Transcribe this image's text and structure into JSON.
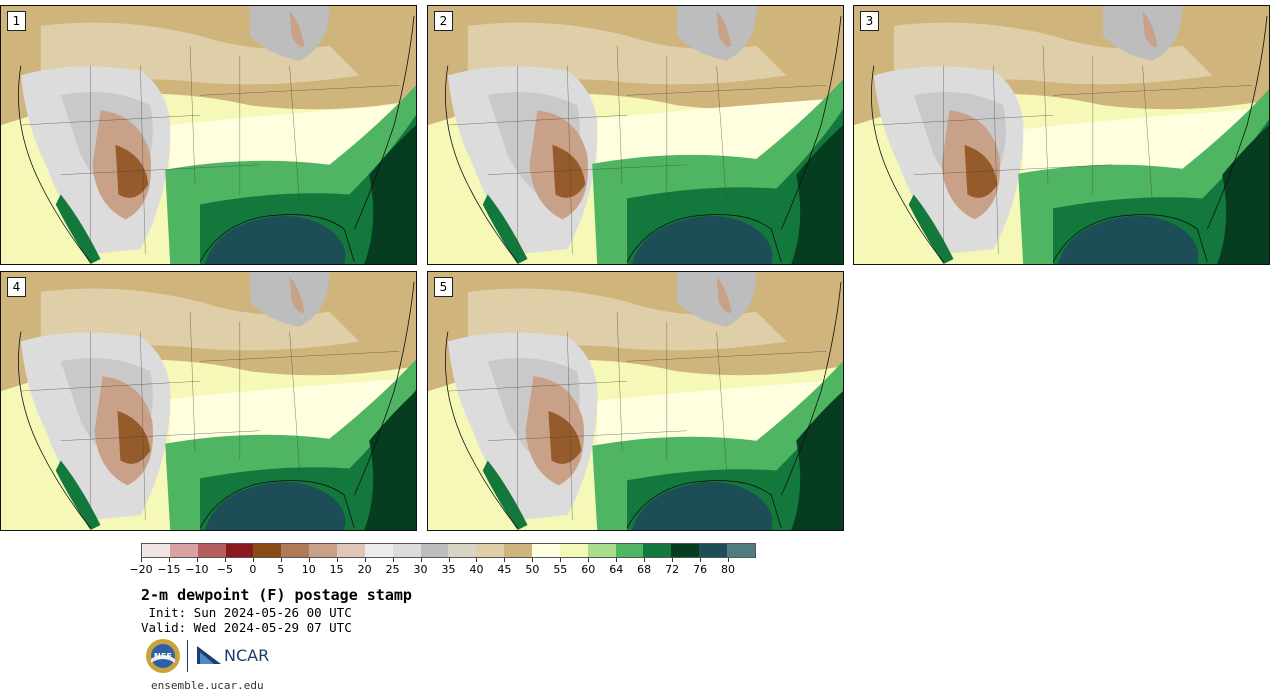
{
  "panels": [
    {
      "label": "1"
    },
    {
      "label": "2"
    },
    {
      "label": "3"
    },
    {
      "label": "4"
    },
    {
      "label": "5"
    }
  ],
  "colorbar": {
    "colors": [
      "#f2e4e4",
      "#d9a2a2",
      "#b65e5e",
      "#8b1a1f",
      "#8a4a14",
      "#b07a58",
      "#c9a188",
      "#dfc6b6",
      "#ececec",
      "#dcdcdc",
      "#bdbdbd",
      "#d8d5c6",
      "#dfcfa8",
      "#cfb47c",
      "#ffffe0",
      "#f6f8b8",
      "#a9dd8c",
      "#4fb563",
      "#12783c",
      "#063d21",
      "#1d4d56",
      "#4f7d80"
    ],
    "tick_labels": [
      "−20",
      "−15",
      "−10",
      "−5",
      "0",
      "5",
      "10",
      "15",
      "20",
      "25",
      "30",
      "35",
      "40",
      "45",
      "50",
      "55",
      "60",
      "64",
      "68",
      "72",
      "76",
      "80"
    ]
  },
  "title": "2-m dewpoint (F) postage stamp",
  "init": " Init: Sun 2024-05-26 00 UTC",
  "valid": "Valid: Wed 2024-05-29 07 UTC",
  "logos": {
    "nsf": "NSF",
    "ncar": "NCAR"
  },
  "site": "ensemble.ucar.edu"
}
